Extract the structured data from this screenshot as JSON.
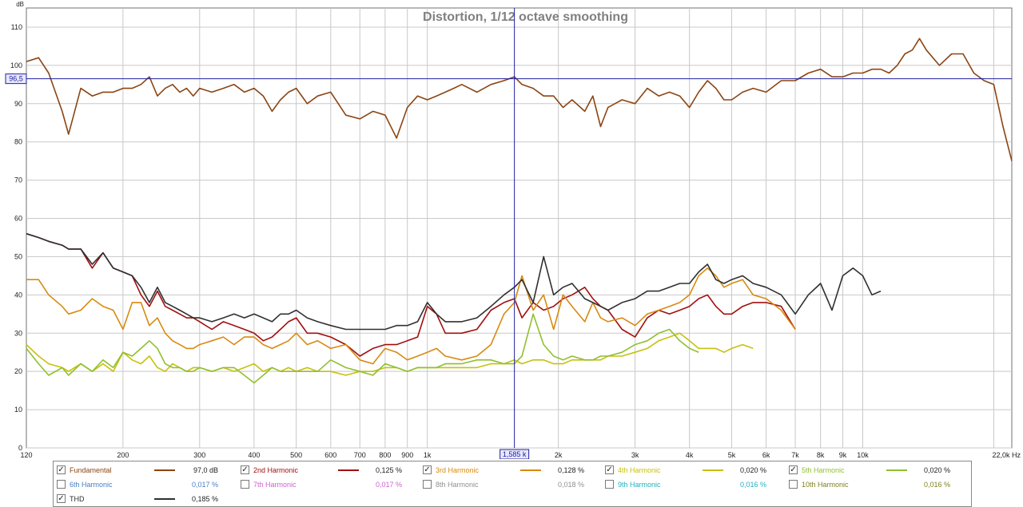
{
  "chart_data": {
    "type": "line",
    "title": "Distortion, 1/12 octave smoothing",
    "x_scale": "log",
    "xlim": [
      120,
      22000
    ],
    "ylim": [
      0,
      115
    ],
    "y_unit": "dB",
    "x_unit": "Hz",
    "grid": true,
    "x_ticks": [
      {
        "v": 120,
        "label": "120"
      },
      {
        "v": 200,
        "label": "200"
      },
      {
        "v": 300,
        "label": "300"
      },
      {
        "v": 400,
        "label": "400"
      },
      {
        "v": 500,
        "label": "500"
      },
      {
        "v": 600,
        "label": "600"
      },
      {
        "v": 700,
        "label": "700"
      },
      {
        "v": 800,
        "label": "800"
      },
      {
        "v": 900,
        "label": "900"
      },
      {
        "v": 1000,
        "label": "1k"
      },
      {
        "v": 2000,
        "label": "2k"
      },
      {
        "v": 3000,
        "label": "3k"
      },
      {
        "v": 4000,
        "label": "4k"
      },
      {
        "v": 5000,
        "label": "5k"
      },
      {
        "v": 6000,
        "label": "6k"
      },
      {
        "v": 7000,
        "label": "7k"
      },
      {
        "v": 8000,
        "label": "8k"
      },
      {
        "v": 9000,
        "label": "9k"
      },
      {
        "v": 10000,
        "label": "10k"
      },
      {
        "v": 22000,
        "label": "22,0k Hz"
      }
    ],
    "y_ticks": [
      0,
      10,
      20,
      30,
      40,
      50,
      60,
      70,
      80,
      90,
      100,
      110
    ],
    "cursor": {
      "x": 1585,
      "x_label": "1,585 k",
      "y": 96.5,
      "y_label": "96,5"
    },
    "series": [
      {
        "name": "Fundamental",
        "color": "#8b4513",
        "visible": true,
        "x": [
          120,
          128,
          135,
          145,
          150,
          160,
          170,
          180,
          190,
          200,
          210,
          220,
          230,
          240,
          250,
          260,
          270,
          280,
          290,
          300,
          320,
          340,
          360,
          380,
          400,
          420,
          440,
          460,
          480,
          500,
          530,
          560,
          600,
          650,
          700,
          750,
          800,
          850,
          900,
          950,
          1000,
          1050,
          1100,
          1150,
          1200,
          1300,
          1400,
          1500,
          1585,
          1650,
          1750,
          1850,
          1950,
          2050,
          2150,
          2300,
          2400,
          2500,
          2600,
          2800,
          3000,
          3200,
          3400,
          3600,
          3800,
          4000,
          4200,
          4400,
          4600,
          4800,
          5000,
          5300,
          5600,
          6000,
          6500,
          7000,
          7500,
          8000,
          8500,
          9000,
          9500,
          10000,
          10500,
          11000,
          11500,
          12000,
          12500,
          13000,
          13500,
          14000,
          15000,
          16000,
          17000,
          18000,
          19000,
          20000,
          21000,
          22000
        ],
        "y": [
          101,
          102,
          98,
          88,
          82,
          94,
          92,
          93,
          93,
          94,
          94,
          95,
          97,
          92,
          94,
          95,
          93,
          94,
          92,
          94,
          93,
          94,
          95,
          93,
          94,
          92,
          88,
          91,
          93,
          94,
          90,
          92,
          93,
          87,
          86,
          88,
          87,
          81,
          89,
          92,
          91,
          92,
          93,
          94,
          95,
          93,
          95,
          96,
          97,
          95,
          94,
          92,
          92,
          89,
          91,
          88,
          92,
          84,
          89,
          91,
          90,
          94,
          92,
          93,
          92,
          89,
          93,
          96,
          94,
          91,
          91,
          93,
          94,
          93,
          96,
          96,
          98,
          99,
          97,
          97,
          98,
          98,
          99,
          99,
          98,
          100,
          103,
          104,
          107,
          104,
          100,
          103,
          103,
          98,
          96,
          95,
          84,
          75
        ]
      },
      {
        "name": "2nd Harmonic",
        "color": "#a01010",
        "visible": true,
        "x": [
          120,
          128,
          135,
          145,
          150,
          160,
          170,
          180,
          190,
          200,
          210,
          220,
          230,
          240,
          250,
          260,
          270,
          280,
          290,
          300,
          320,
          340,
          360,
          380,
          400,
          420,
          440,
          460,
          480,
          500,
          530,
          560,
          600,
          650,
          700,
          750,
          800,
          850,
          900,
          950,
          1000,
          1050,
          1100,
          1200,
          1300,
          1400,
          1500,
          1585,
          1650,
          1750,
          1850,
          1950,
          2050,
          2150,
          2300,
          2400,
          2500,
          2600,
          2800,
          3000,
          3200,
          3400,
          3600,
          3800,
          4000,
          4200,
          4400,
          4600,
          4800,
          5000,
          5300,
          5600,
          6000,
          6500,
          7000
        ],
        "y": [
          56,
          55,
          54,
          53,
          52,
          52,
          47,
          51,
          47,
          46,
          45,
          40,
          37,
          41,
          37,
          36,
          35,
          34,
          34,
          33,
          31,
          33,
          32,
          31,
          30,
          28,
          29,
          31,
          33,
          34,
          30,
          30,
          29,
          27,
          24,
          26,
          27,
          27,
          28,
          29,
          37,
          35,
          30,
          30,
          31,
          36,
          38,
          39,
          34,
          38,
          36,
          37,
          39,
          40,
          42,
          39,
          37,
          36,
          31,
          29,
          34,
          36,
          35,
          36,
          37,
          39,
          40,
          37,
          35,
          35,
          37,
          38,
          38,
          37,
          31
        ]
      },
      {
        "name": "3rd Harmonic",
        "color": "#d88a10",
        "visible": true,
        "x": [
          120,
          128,
          135,
          145,
          150,
          160,
          170,
          180,
          190,
          200,
          210,
          220,
          230,
          240,
          250,
          260,
          270,
          280,
          290,
          300,
          320,
          340,
          360,
          380,
          400,
          420,
          440,
          460,
          480,
          500,
          530,
          560,
          600,
          650,
          700,
          750,
          800,
          850,
          900,
          950,
          1000,
          1050,
          1100,
          1200,
          1300,
          1400,
          1500,
          1585,
          1650,
          1750,
          1850,
          1950,
          2050,
          2150,
          2300,
          2400,
          2500,
          2600,
          2800,
          3000,
          3200,
          3400,
          3600,
          3800,
          4000,
          4200,
          4400,
          4600,
          4800,
          5000,
          5300,
          5600,
          6000,
          6500,
          7000
        ],
        "y": [
          44,
          44,
          40,
          37,
          35,
          36,
          39,
          37,
          36,
          31,
          38,
          38,
          32,
          34,
          30,
          28,
          27,
          26,
          26,
          27,
          28,
          29,
          27,
          29,
          29,
          27,
          26,
          27,
          28,
          30,
          27,
          28,
          26,
          27,
          23,
          22,
          26,
          25,
          23,
          24,
          25,
          26,
          24,
          23,
          24,
          27,
          35,
          38,
          45,
          36,
          40,
          31,
          40,
          37,
          33,
          38,
          34,
          33,
          34,
          32,
          35,
          36,
          37,
          38,
          40,
          45,
          47,
          45,
          42,
          43,
          44,
          40,
          39,
          36,
          31
        ]
      },
      {
        "name": "4th Harmonic",
        "color": "#c8c010",
        "visible": true,
        "x": [
          120,
          128,
          135,
          145,
          150,
          160,
          170,
          180,
          190,
          200,
          210,
          220,
          230,
          240,
          250,
          260,
          270,
          280,
          290,
          300,
          320,
          340,
          360,
          380,
          400,
          420,
          440,
          460,
          480,
          500,
          530,
          560,
          600,
          650,
          700,
          750,
          800,
          850,
          900,
          950,
          1000,
          1050,
          1100,
          1200,
          1300,
          1400,
          1500,
          1585,
          1650,
          1750,
          1850,
          1950,
          2050,
          2150,
          2300,
          2400,
          2500,
          2600,
          2800,
          3000,
          3200,
          3400,
          3600,
          3800,
          4000,
          4200,
          4400,
          4600,
          4800,
          5000,
          5300,
          5600
        ],
        "y": [
          27,
          24,
          22,
          21,
          20,
          22,
          20,
          22,
          20,
          25,
          23,
          22,
          24,
          21,
          20,
          22,
          21,
          20,
          21,
          21,
          20,
          21,
          20,
          21,
          22,
          20,
          21,
          20,
          21,
          20,
          21,
          20,
          20,
          19,
          20,
          20,
          21,
          21,
          20,
          21,
          21,
          21,
          21,
          21,
          21,
          22,
          22,
          23,
          22,
          23,
          23,
          22,
          22,
          23,
          23,
          23,
          23,
          24,
          24,
          25,
          26,
          28,
          29,
          30,
          28,
          26,
          26,
          26,
          25,
          26,
          27,
          26
        ]
      },
      {
        "name": "5th Harmonic",
        "color": "#90c030",
        "visible": true,
        "x": [
          120,
          128,
          135,
          145,
          150,
          160,
          170,
          180,
          190,
          200,
          210,
          220,
          230,
          240,
          250,
          260,
          270,
          280,
          290,
          300,
          320,
          340,
          360,
          380,
          400,
          420,
          440,
          460,
          480,
          500,
          530,
          560,
          600,
          650,
          700,
          750,
          800,
          850,
          900,
          950,
          1000,
          1050,
          1100,
          1200,
          1300,
          1400,
          1500,
          1585,
          1650,
          1750,
          1850,
          1950,
          2050,
          2150,
          2300,
          2400,
          2500,
          2600,
          2800,
          3000,
          3200,
          3400,
          3600,
          3800,
          4000,
          4200
        ],
        "y": [
          26,
          22,
          19,
          21,
          19,
          22,
          20,
          23,
          21,
          25,
          24,
          26,
          28,
          26,
          22,
          21,
          21,
          20,
          20,
          21,
          20,
          21,
          21,
          19,
          17,
          19,
          21,
          20,
          20,
          20,
          20,
          20,
          23,
          21,
          20,
          19,
          22,
          21,
          20,
          21,
          21,
          21,
          22,
          22,
          23,
          23,
          22,
          22,
          24,
          35,
          27,
          24,
          23,
          24,
          23,
          23,
          24,
          24,
          25,
          27,
          28,
          30,
          31,
          28,
          26,
          25
        ]
      },
      {
        "name": "6th Harmonic",
        "color": "#4a7ec8",
        "visible": false
      },
      {
        "name": "7th Harmonic",
        "color": "#d060d0",
        "visible": false
      },
      {
        "name": "8th Harmonic",
        "color": "#909090",
        "visible": false
      },
      {
        "name": "9th Harmonic",
        "color": "#20b0c0",
        "visible": false
      },
      {
        "name": "10th Harmonic",
        "color": "#808020",
        "visible": false
      },
      {
        "name": "THD",
        "color": "#303030",
        "visible": true,
        "x": [
          120,
          128,
          135,
          145,
          150,
          160,
          170,
          180,
          190,
          200,
          210,
          220,
          230,
          240,
          250,
          260,
          270,
          280,
          290,
          300,
          320,
          340,
          360,
          380,
          400,
          420,
          440,
          460,
          480,
          500,
          530,
          560,
          600,
          650,
          700,
          750,
          800,
          850,
          900,
          950,
          1000,
          1050,
          1100,
          1200,
          1300,
          1400,
          1500,
          1585,
          1650,
          1750,
          1850,
          1950,
          2050,
          2150,
          2300,
          2400,
          2500,
          2600,
          2800,
          3000,
          3200,
          3400,
          3600,
          3800,
          4000,
          4200,
          4400,
          4600,
          4800,
          5000,
          5300,
          5600,
          6000,
          6500,
          7000,
          7500,
          8000,
          8500,
          9000,
          9500,
          10000,
          10500,
          11000
        ],
        "y": [
          56,
          55,
          54,
          53,
          52,
          52,
          48,
          51,
          47,
          46,
          45,
          42,
          38,
          42,
          38,
          37,
          36,
          35,
          34,
          34,
          33,
          34,
          35,
          34,
          35,
          34,
          33,
          35,
          35,
          36,
          34,
          33,
          32,
          31,
          31,
          31,
          31,
          32,
          32,
          33,
          38,
          35,
          33,
          33,
          34,
          37,
          40,
          42,
          44,
          38,
          50,
          40,
          42,
          43,
          39,
          38,
          37,
          36,
          38,
          39,
          41,
          41,
          42,
          43,
          43,
          46,
          48,
          44,
          43,
          44,
          45,
          43,
          42,
          40,
          35,
          40,
          43,
          36,
          45,
          47,
          45,
          40,
          41
        ]
      }
    ]
  },
  "axis": {
    "y_unit_label": "dB"
  },
  "legend": {
    "rows": [
      [
        {
          "name": "Fundamental",
          "value": "97,0 dB",
          "checked": true,
          "color": "#8b4513"
        },
        {
          "name": "2nd Harmonic",
          "value": "0,125 %",
          "checked": true,
          "color": "#a01010"
        },
        {
          "name": "3rd Harmonic",
          "value": "0,128 %",
          "checked": true,
          "color": "#d88a10"
        },
        {
          "name": "4th Harmonic",
          "value": "0,020 %",
          "checked": true,
          "color": "#c8c010"
        },
        {
          "name": "5th Harmonic",
          "value": "0,020 %",
          "checked": true,
          "color": "#90c030"
        }
      ],
      [
        {
          "name": "6th Harmonic",
          "value": "0,017 %",
          "checked": false,
          "color": "#4a7ec8"
        },
        {
          "name": "7th Harmonic",
          "value": "0,017 %",
          "checked": false,
          "color": "#d060d0"
        },
        {
          "name": "8th Harmonic",
          "value": "0,018 %",
          "checked": false,
          "color": "#909090"
        },
        {
          "name": "9th Harmonic",
          "value": "0,016 %",
          "checked": false,
          "color": "#20b0c0"
        },
        {
          "name": "10th Harmonic",
          "value": "0,016 %",
          "checked": false,
          "color": "#808020"
        }
      ],
      [
        {
          "name": "THD",
          "value": "0,185 %",
          "checked": true,
          "color": "#303030"
        }
      ]
    ]
  },
  "colors": {
    "grid": "#c8c8c8",
    "axis": "#707070",
    "cursor": "#2020a0",
    "title": "#808080",
    "label_bg": "#e8e8ff"
  }
}
